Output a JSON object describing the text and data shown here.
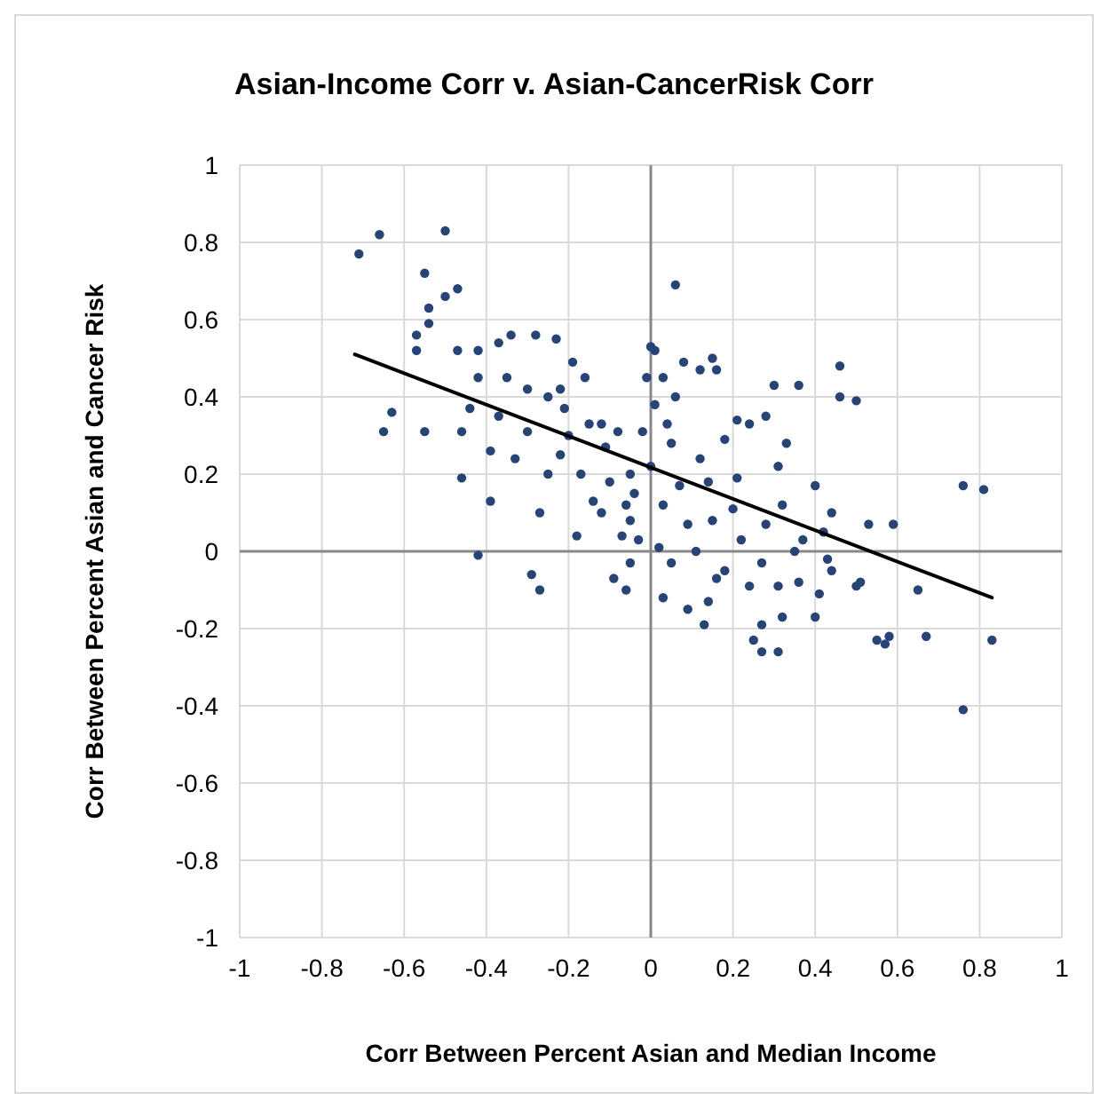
{
  "chart_data": {
    "type": "scatter",
    "title": "Asian-Income Corr v. Asian-CancerRisk Corr",
    "xlabel": "Corr Between Percent Asian and Median Income",
    "ylabel": "Corr Between Percent Asian and Cancer Risk",
    "xlim": [
      -1,
      1
    ],
    "ylim": [
      -1,
      1
    ],
    "xticks": [
      -1,
      -0.8,
      -0.6,
      -0.4,
      -0.2,
      0,
      0.2,
      0.4,
      0.6,
      0.8,
      1
    ],
    "yticks": [
      -1,
      -0.8,
      -0.6,
      -0.4,
      -0.2,
      0,
      0.2,
      0.4,
      0.6,
      0.8,
      1
    ],
    "grid": true,
    "marker": "circle",
    "series": [
      {
        "color": "#264478",
        "x": [
          -0.71,
          -0.66,
          -0.5,
          -0.55,
          -0.47,
          -0.5,
          -0.54,
          -0.57,
          -0.54,
          -0.57,
          -0.47,
          -0.65,
          -0.63,
          -0.55,
          -0.42,
          -0.42,
          -0.44,
          -0.46,
          -0.46,
          -0.42,
          -0.37,
          -0.34,
          -0.28,
          -0.23,
          -0.37,
          -0.39,
          -0.39,
          -0.33,
          -0.29,
          -0.27,
          -0.27,
          -0.19,
          -0.16,
          -0.21,
          -0.12,
          -0.17,
          -0.18,
          -0.14,
          -0.07,
          -0.05,
          -0.09,
          -0.06,
          -0.11,
          -0.05,
          -0.02,
          0,
          -0.01,
          -0.08,
          -0.06,
          -0.03,
          0.06,
          0.01,
          0.03,
          0.08,
          0.12,
          0.15,
          0.16,
          0.3,
          0.36,
          0.46,
          0.46,
          0.5,
          0.33,
          0.28,
          0.21,
          0.24,
          0.18,
          0.12,
          0.05,
          0.21,
          0.31,
          0.4,
          0.44,
          0.53,
          0.59,
          0.76,
          0.81,
          0.76,
          0.83,
          0.67,
          0.58,
          0.57,
          0.55,
          0.5,
          0.51,
          0.65,
          0.25,
          0.27,
          0.31,
          0.32,
          0.4,
          0.14,
          0.13,
          0.03,
          0.09,
          0.27,
          0.36,
          0.43,
          0.44,
          0.18,
          0.27,
          0.35,
          0.11,
          0.05,
          0.02,
          0.15,
          0.22,
          0.07,
          0.03,
          0.14,
          0.2,
          0.28,
          0.32,
          0.37,
          0.42,
          0.09,
          0.16,
          0.24,
          0.31,
          0.41,
          0.01,
          0.04,
          0.06,
          -0.3,
          -0.25,
          -0.22,
          -0.2,
          -0.15,
          -0.35,
          -0.3,
          -0.25,
          -0.22,
          -0.1,
          -0.12,
          -0.05,
          0,
          -0.04
        ],
        "values": [
          0.77,
          0.82,
          0.83,
          0.72,
          0.68,
          0.66,
          0.63,
          0.56,
          0.59,
          0.52,
          0.52,
          0.31,
          0.36,
          0.31,
          0.52,
          0.45,
          0.37,
          0.31,
          0.19,
          -0.01,
          0.54,
          0.56,
          0.56,
          0.55,
          0.35,
          0.26,
          0.13,
          0.24,
          -0.06,
          -0.1,
          0.1,
          0.49,
          0.45,
          0.37,
          0.33,
          0.2,
          0.04,
          0.13,
          0.04,
          -0.03,
          -0.07,
          -0.1,
          0.27,
          0.2,
          0.31,
          0.53,
          0.45,
          0.31,
          0.12,
          0.03,
          0.69,
          0.52,
          0.45,
          0.49,
          0.47,
          0.5,
          0.47,
          0.43,
          0.43,
          0.48,
          0.4,
          0.39,
          0.28,
          0.35,
          0.34,
          0.33,
          0.29,
          0.24,
          0.28,
          0.19,
          0.22,
          0.17,
          0.1,
          0.07,
          0.07,
          0.17,
          0.16,
          -0.41,
          -0.23,
          -0.22,
          -0.22,
          -0.24,
          -0.23,
          -0.09,
          -0.08,
          -0.1,
          -0.23,
          -0.26,
          -0.26,
          -0.17,
          -0.17,
          -0.13,
          -0.19,
          -0.12,
          -0.15,
          -0.19,
          -0.08,
          -0.02,
          -0.05,
          -0.05,
          -0.03,
          0,
          0,
          -0.03,
          0.01,
          0.08,
          0.03,
          0.17,
          0.12,
          0.18,
          0.11,
          0.07,
          0.12,
          0.03,
          0.05,
          0.07,
          -0.07,
          -0.09,
          -0.09,
          -0.11,
          0.38,
          0.33,
          0.4,
          0.42,
          0.4,
          0.42,
          0.3,
          0.33,
          0.45,
          0.31,
          0.2,
          0.25,
          0.18,
          0.1,
          0.08,
          0.22,
          0.15
        ]
      },
      {
        "type": "line",
        "color": "#000000",
        "marker": "none",
        "x": [
          -0.72,
          0.83
        ],
        "values": [
          0.51,
          -0.12
        ]
      }
    ]
  }
}
